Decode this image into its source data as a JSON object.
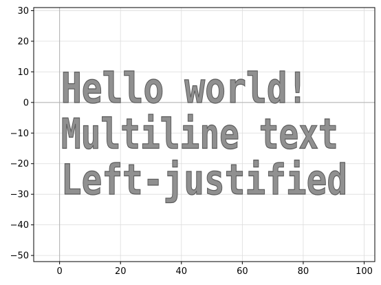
{
  "chart_data": {
    "type": "scatter",
    "title": "",
    "xlabel": "",
    "ylabel": "",
    "xlim": [
      -8.5,
      103.5
    ],
    "ylim": [
      -52,
      31
    ],
    "xticks": [
      0,
      20,
      40,
      60,
      80,
      100
    ],
    "yticks": [
      -50,
      -40,
      -30,
      -20,
      -10,
      0,
      10,
      20,
      30
    ],
    "xtick_labels": [
      "0",
      "20",
      "40",
      "60",
      "80",
      "100"
    ],
    "ytick_labels": [
      "−50",
      "−40",
      "−30",
      "−20",
      "−10",
      "0",
      "10",
      "20",
      "30"
    ],
    "grid": true,
    "axhline_y": 0,
    "axvline_x": 0,
    "text_lines": [
      {
        "text": "Hello world!",
        "x_start": 0.5,
        "x_end": 81.5,
        "y_top": 10,
        "y_bottom": 0
      },
      {
        "text": "Multiline text",
        "x_start": 0.5,
        "x_end": 91.5,
        "y_top": -5,
        "y_bottom": -15
      },
      {
        "text": "Left-justified",
        "x_start": 0.5,
        "x_end": 94.5,
        "y_top": -20,
        "y_bottom": -30
      }
    ],
    "colors": {
      "text_fill": "#909090",
      "text_stroke": "#5a5a5a",
      "grid": "#dcdcdc",
      "axis_line": "#b0b0b0"
    }
  }
}
